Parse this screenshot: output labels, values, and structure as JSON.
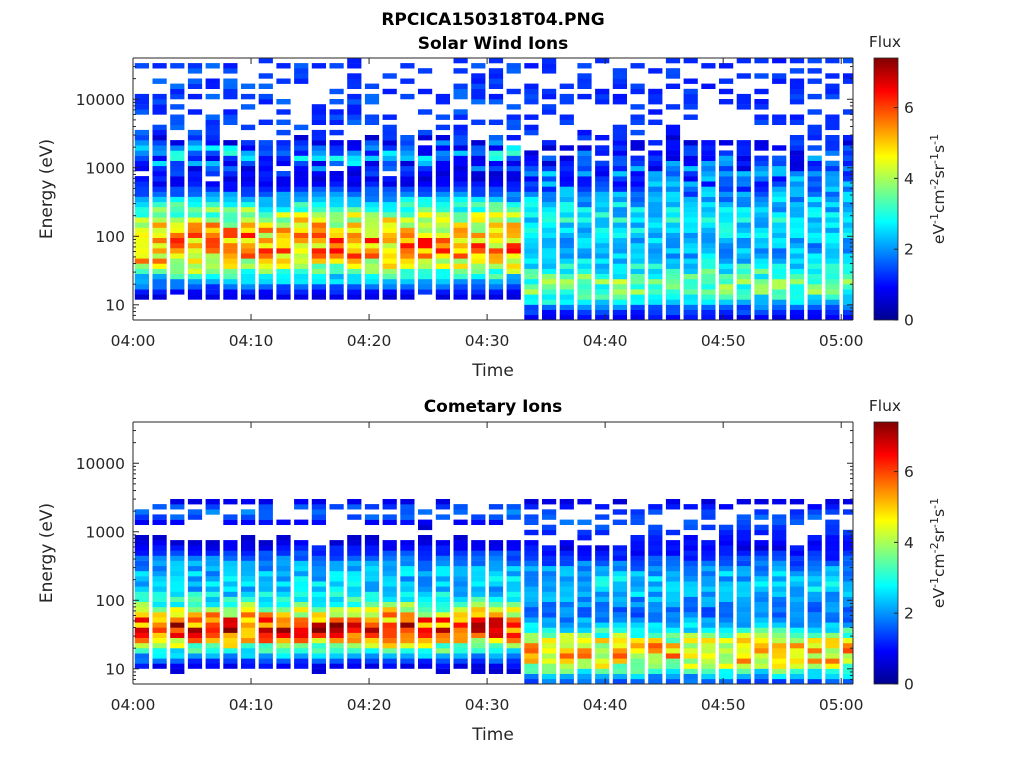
{
  "figure": {
    "title": "RPCICA150318T04.PNG"
  },
  "chart_data": [
    {
      "type": "heatmap",
      "title": "Solar Wind Ions",
      "xlabel": "Time",
      "ylabel": "Energy (eV)",
      "x_ticks": [
        "04:00",
        "04:10",
        "04:20",
        "04:30",
        "04:40",
        "04:50",
        "05:00"
      ],
      "x_range_minutes": [
        0,
        61
      ],
      "y_scale": "log",
      "y_ticks": [
        10,
        100,
        1000,
        10000
      ],
      "y_tick_labels": [
        "10",
        "100",
        "1000",
        "10000"
      ],
      "y_range": [
        6,
        40000
      ],
      "colorbar": {
        "title": "Flux",
        "label": "eV-1cm-2sr-1s-1",
        "ticks": [
          0,
          2,
          4,
          6
        ],
        "range": [
          0,
          7.4
        ],
        "colormap": "jet"
      },
      "time_step_minutes": 1.5,
      "notes": "Two regimes: 04:00-04:33 ion peak near 20-100 eV (flux ~4-5.5) with banded 1-3 keV population; 04:33-05:00 peak near 8-30 eV (flux ~3-4)."
    },
    {
      "type": "heatmap",
      "title": "Cometary Ions",
      "xlabel": "Time",
      "ylabel": "Energy (eV)",
      "x_ticks": [
        "04:00",
        "04:10",
        "04:20",
        "04:30",
        "04:40",
        "04:50",
        "05:00"
      ],
      "x_range_minutes": [
        0,
        61
      ],
      "y_scale": "log",
      "y_ticks": [
        10,
        100,
        1000,
        10000
      ],
      "y_tick_labels": [
        "10",
        "100",
        "1000",
        "10000"
      ],
      "y_range": [
        6,
        40000
      ],
      "colorbar": {
        "title": "Flux",
        "label": "eV-1cm-2sr-1s-1",
        "ticks": [
          0,
          2,
          4,
          6
        ],
        "range": [
          0,
          7.4
        ],
        "colormap": "jet"
      },
      "time_step_minutes": 1.5,
      "notes": "Strong peak 20-60 eV before 04:33 (flux ~5.5-6.5), weaker 8-30 eV peak afterwards (flux ~4.5-5.5); sparse banded 1-3 keV population."
    }
  ]
}
